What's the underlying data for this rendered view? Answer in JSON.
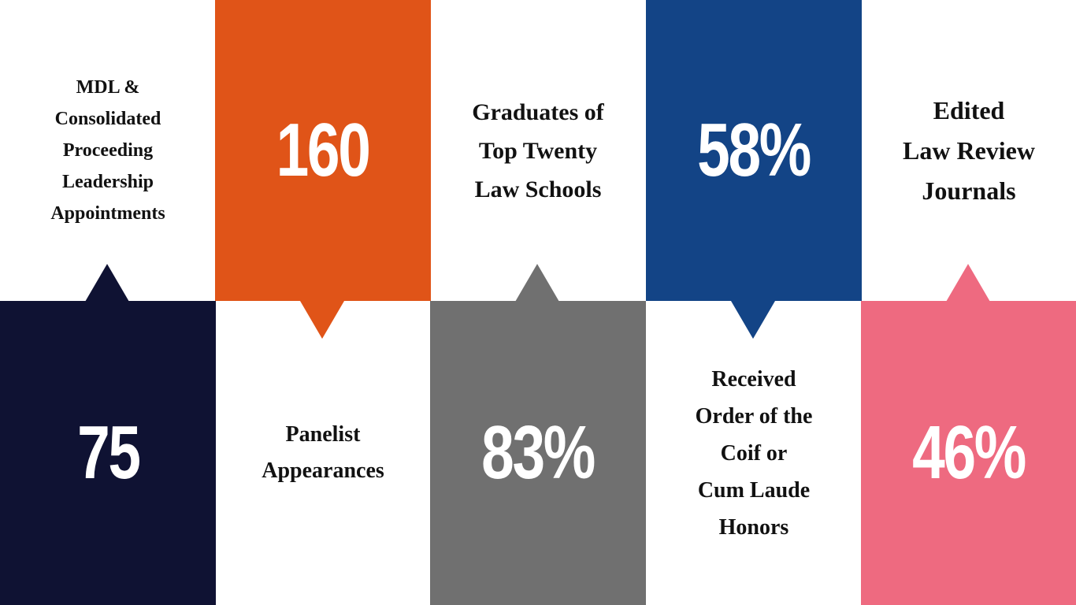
{
  "items": [
    {
      "label": [
        "MDL &",
        "Consolidated",
        "Proceeding",
        "Leadership",
        "Appointments"
      ],
      "value": "75"
    },
    {
      "label": [
        "Panelist",
        "Appearances"
      ],
      "value": "160"
    },
    {
      "label": [
        "Graduates of",
        "Top Twenty",
        "Law Schools"
      ],
      "value": "83%"
    },
    {
      "label": [
        "Received",
        "Order of the",
        "Coif or",
        "Cum Laude",
        "Honors"
      ],
      "value": "58%"
    },
    {
      "label": [
        "Edited",
        "Law Review",
        "Journals"
      ],
      "value": "46%"
    }
  ]
}
